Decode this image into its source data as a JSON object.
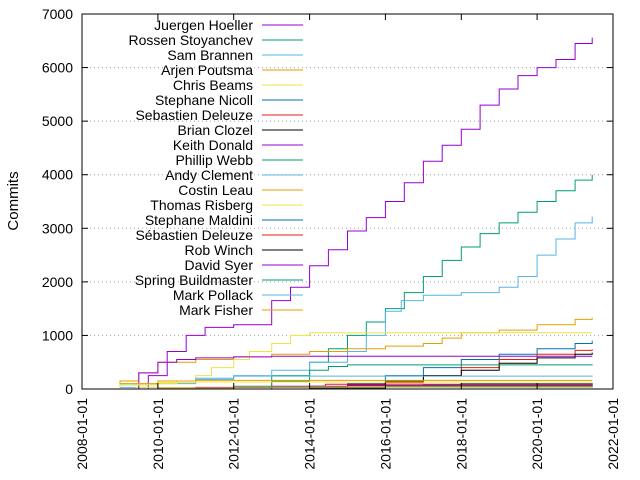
{
  "chart_data": {
    "type": "line",
    "xlabel": "",
    "ylabel": "Commits",
    "xlim": [
      "2008-01-01",
      "2022-01-01"
    ],
    "ylim": [
      0,
      7000
    ],
    "x_ticks": [
      "2008-01-01",
      "2010-01-01",
      "2012-01-01",
      "2014-01-01",
      "2016-01-01",
      "2018-01-01",
      "2020-01-01",
      "2022-01-01"
    ],
    "y_ticks": [
      0,
      1000,
      2000,
      3000,
      4000,
      5000,
      6000,
      7000
    ],
    "grid": "horizontal-dotted",
    "legend_position": "top-left",
    "series": [
      {
        "name": "Juergen Hoeller",
        "color": "#9400d3",
        "x": [
          "2009-04-01",
          "2009-10-01",
          "2010-04-01",
          "2010-10-01",
          "2011-04-01",
          "2012-01-01",
          "2013-01-01",
          "2013-07-01",
          "2014-01-01",
          "2014-07-01",
          "2015-01-01",
          "2015-07-01",
          "2016-01-01",
          "2016-07-01",
          "2017-01-01",
          "2017-07-01",
          "2018-01-01",
          "2018-07-01",
          "2019-01-01",
          "2019-07-01",
          "2020-01-01",
          "2020-07-01",
          "2021-01-01",
          "2021-06-15"
        ],
        "values": [
          0,
          250,
          700,
          1000,
          1150,
          1200,
          1650,
          1900,
          2300,
          2600,
          2950,
          3200,
          3500,
          3850,
          4250,
          4550,
          4850,
          5300,
          5600,
          5850,
          6000,
          6150,
          6450,
          6560
        ]
      },
      {
        "name": "Rossen Stoyanchev",
        "color": "#009e73",
        "x": [
          "2011-06-01",
          "2012-01-01",
          "2013-01-01",
          "2014-01-01",
          "2014-07-01",
          "2015-01-01",
          "2015-07-01",
          "2016-01-01",
          "2016-07-01",
          "2017-01-01",
          "2017-07-01",
          "2018-01-01",
          "2018-07-01",
          "2019-01-01",
          "2019-07-01",
          "2020-01-01",
          "2020-07-01",
          "2021-01-01",
          "2021-06-15"
        ],
        "values": [
          0,
          50,
          250,
          500,
          750,
          1000,
          1250,
          1500,
          1800,
          2100,
          2400,
          2650,
          2900,
          3100,
          3300,
          3500,
          3700,
          3900,
          4000
        ]
      },
      {
        "name": "Sam Brannen",
        "color": "#56b4e9",
        "x": [
          "2008-06-01",
          "2009-01-01",
          "2010-01-01",
          "2011-01-01",
          "2012-01-01",
          "2013-01-01",
          "2014-01-01",
          "2015-01-01",
          "2015-07-01",
          "2016-01-01",
          "2016-06-01",
          "2017-01-01",
          "2018-01-01",
          "2019-01-01",
          "2019-07-01",
          "2020-01-01",
          "2020-07-01",
          "2021-01-01",
          "2021-06-15"
        ],
        "values": [
          0,
          30,
          100,
          180,
          250,
          350,
          500,
          700,
          1000,
          1450,
          1650,
          1750,
          1800,
          1900,
          2100,
          2500,
          2800,
          3100,
          3220
        ]
      },
      {
        "name": "Arjen Poutsma",
        "color": "#e69f00",
        "x": [
          "2008-10-01",
          "2009-01-01",
          "2009-07-01",
          "2010-01-01",
          "2011-01-01",
          "2012-01-01",
          "2013-01-01",
          "2014-01-01",
          "2015-01-01",
          "2016-01-01",
          "2017-01-01",
          "2017-07-01",
          "2018-01-01",
          "2019-01-01",
          "2020-01-01",
          "2021-01-01",
          "2021-06-15"
        ],
        "values": [
          0,
          150,
          300,
          500,
          550,
          600,
          650,
          700,
          750,
          800,
          850,
          950,
          1050,
          1100,
          1200,
          1300,
          1330
        ]
      },
      {
        "name": "Chris Beams",
        "color": "#f0e442",
        "x": [
          "2008-06-01",
          "2009-06-01",
          "2010-01-01",
          "2010-07-01",
          "2011-01-01",
          "2011-06-01",
          "2012-01-01",
          "2012-06-01",
          "2013-01-01",
          "2013-07-01",
          "2014-01-01",
          "2021-06-15"
        ],
        "values": [
          0,
          30,
          100,
          150,
          250,
          400,
          550,
          700,
          850,
          1000,
          1050,
          1050
        ]
      },
      {
        "name": "Stephane Nicoll",
        "color": "#0072b2",
        "x": [
          "2014-01-01",
          "2015-01-01",
          "2016-01-01",
          "2017-01-01",
          "2018-01-01",
          "2019-01-01",
          "2020-01-01",
          "2021-01-01",
          "2021-06-15"
        ],
        "values": [
          0,
          100,
          250,
          400,
          550,
          650,
          750,
          850,
          900
        ]
      },
      {
        "name": "Sebastien Deleuze",
        "color": "#e51e10",
        "x": [
          "2014-06-01",
          "2015-01-01",
          "2016-01-01",
          "2017-01-01",
          "2018-01-01",
          "2019-01-01",
          "2020-01-01",
          "2021-01-01",
          "2021-06-15"
        ],
        "values": [
          0,
          40,
          120,
          250,
          400,
          550,
          650,
          720,
          740
        ]
      },
      {
        "name": "Brian Clozel",
        "color": "#000000",
        "x": [
          "2014-01-01",
          "2015-01-01",
          "2016-01-01",
          "2017-01-01",
          "2018-01-01",
          "2019-01-01",
          "2020-01-01",
          "2021-01-01",
          "2021-06-15"
        ],
        "values": [
          0,
          80,
          150,
          250,
          350,
          480,
          580,
          650,
          680
        ]
      },
      {
        "name": "Keith Donald",
        "color": "#9400d3",
        "x": [
          "2009-01-01",
          "2009-07-01",
          "2010-01-01",
          "2010-07-01",
          "2011-01-01",
          "2012-01-01",
          "2013-01-01",
          "2021-06-15"
        ],
        "values": [
          0,
          300,
          500,
          550,
          580,
          600,
          610,
          610
        ]
      },
      {
        "name": "Phillip Webb",
        "color": "#009e73",
        "x": [
          "2012-01-01",
          "2013-01-01",
          "2014-01-01",
          "2014-07-01",
          "2015-01-01",
          "2021-06-15"
        ],
        "values": [
          0,
          150,
          350,
          420,
          450,
          460
        ]
      },
      {
        "name": "Andy Clement",
        "color": "#56b4e9",
        "x": [
          "2008-06-01",
          "2009-01-01",
          "2010-01-01",
          "2011-01-01",
          "2012-01-01",
          "2021-06-15"
        ],
        "values": [
          0,
          80,
          150,
          200,
          240,
          250
        ]
      },
      {
        "name": "Costin Leau",
        "color": "#e69f00",
        "x": [
          "2008-01-01",
          "2009-01-01",
          "2010-01-01",
          "2011-01-01",
          "2021-06-15"
        ],
        "values": [
          0,
          100,
          150,
          160,
          160
        ]
      },
      {
        "name": "Thomas Risberg",
        "color": "#f0e442",
        "x": [
          "2008-01-01",
          "2009-01-01",
          "2010-01-01",
          "2011-01-01",
          "2021-06-15"
        ],
        "values": [
          0,
          80,
          120,
          130,
          130
        ]
      },
      {
        "name": "Stephane Maldini",
        "color": "#0072b2",
        "x": [
          "2015-01-01",
          "2016-01-01",
          "2017-01-01",
          "2018-01-01",
          "2021-06-15"
        ],
        "values": [
          0,
          40,
          80,
          100,
          110
        ]
      },
      {
        "name": "Sébastien Deleuze",
        "color": "#e51e10",
        "x": [
          "2013-01-01",
          "2014-01-01",
          "2014-06-01",
          "2021-06-15"
        ],
        "values": [
          0,
          50,
          90,
          100
        ]
      },
      {
        "name": "Rob Winch",
        "color": "#000000",
        "x": [
          "2012-01-01",
          "2014-01-01",
          "2016-01-01",
          "2018-01-01",
          "2021-06-15"
        ],
        "values": [
          0,
          20,
          50,
          70,
          80
        ]
      },
      {
        "name": "David Syer",
        "color": "#9400d3",
        "x": [
          "2009-01-01",
          "2011-01-01",
          "2013-01-01",
          "2015-01-01",
          "2021-06-15"
        ],
        "values": [
          0,
          30,
          50,
          65,
          70
        ]
      },
      {
        "name": "Spring Buildmaster",
        "color": "#009e73",
        "x": [
          "2010-01-01",
          "2013-01-01",
          "2016-01-01",
          "2021-06-15"
        ],
        "values": [
          0,
          30,
          50,
          60
        ]
      },
      {
        "name": "Mark Pollack",
        "color": "#56b4e9",
        "x": [
          "2008-06-01",
          "2010-01-01",
          "2012-01-01",
          "2021-06-15"
        ],
        "values": [
          0,
          20,
          40,
          50
        ]
      },
      {
        "name": "Mark Fisher",
        "color": "#e69f00",
        "x": [
          "2008-01-01",
          "2010-01-01",
          "2012-01-01",
          "2021-06-15"
        ],
        "values": [
          0,
          20,
          35,
          40
        ]
      }
    ]
  }
}
